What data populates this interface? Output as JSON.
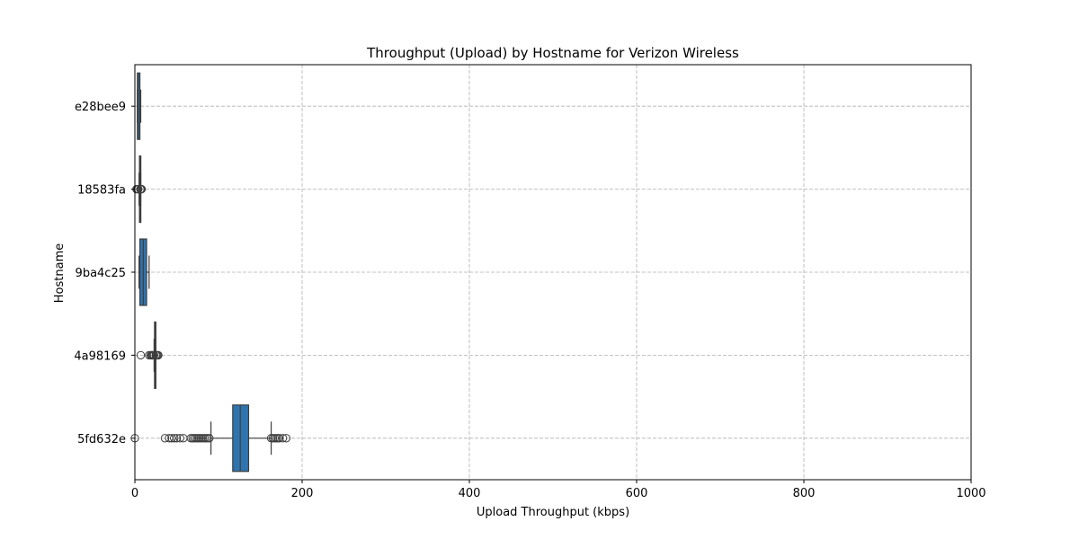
{
  "chart_data": {
    "type": "box",
    "orientation": "horizontal",
    "title": "Throughput (Upload) by Hostname for Verizon Wireless",
    "xlabel": "Upload Throughput (kbps)",
    "ylabel": "Hostname",
    "xlim": [
      0,
      1000
    ],
    "xticks": [
      0,
      200,
      400,
      600,
      800,
      1000
    ],
    "xtick_labels": [
      "0",
      "200",
      "400",
      "600",
      "800",
      "1000"
    ],
    "grid": true,
    "categories": [
      "e28bee9",
      "18583fa",
      "9ba4c25",
      "4a98169",
      "5fd632e"
    ],
    "boxes": [
      {
        "category": "e28bee9",
        "whisker_low": 3,
        "q1": 3,
        "median": 4,
        "q3": 6,
        "whisker_high": 7,
        "outliers": []
      },
      {
        "category": "18583fa",
        "whisker_low": 5,
        "q1": 5.5,
        "median": 6,
        "q3": 6.5,
        "whisker_high": 7,
        "outliers": [
          2,
          3,
          4,
          6.5,
          7,
          7.5,
          8
        ]
      },
      {
        "category": "9ba4c25",
        "whisker_low": 5,
        "q1": 6,
        "median": 10,
        "q3": 14,
        "whisker_high": 17,
        "outliers": []
      },
      {
        "category": "4a98169",
        "whisker_low": 23,
        "q1": 23.5,
        "median": 24,
        "q3": 24.5,
        "whisker_high": 25,
        "outliers": [
          7,
          17,
          19,
          20,
          21,
          22,
          23,
          25,
          26,
          27,
          28
        ]
      },
      {
        "category": "5fd632e",
        "whisker_low": 91,
        "q1": 117,
        "median": 126,
        "q3": 136,
        "whisker_high": 163,
        "outliers": [
          0,
          36,
          41,
          44,
          47,
          50,
          54,
          58,
          67,
          69,
          71,
          73,
          75,
          77,
          79,
          81,
          83,
          85,
          87,
          89,
          163,
          165,
          167,
          169,
          171,
          173,
          177,
          181
        ]
      }
    ],
    "colors": {
      "box_fill": "#2e75b0",
      "box_edge": "#3d3d3d",
      "grid": "#b0b0b0"
    }
  }
}
